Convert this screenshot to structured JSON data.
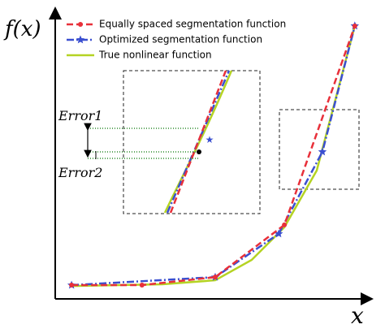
{
  "chart_data": {
    "type": "line",
    "x_label": "x",
    "y_label": "f(x)",
    "xlim": [
      0,
      100
    ],
    "ylim": [
      0,
      100
    ],
    "legend": "top-left",
    "annotations": [
      "Error1",
      "Error2"
    ],
    "series": [
      {
        "name": "Equally spaced segmentation function",
        "color": "#e8303a",
        "style": "dashed",
        "marker": "dot",
        "x": [
          5.2,
          27.6,
          50.9,
          72.9,
          95.3
        ],
        "values": [
          4.8,
          4.8,
          7.6,
          25.8,
          95.2
        ]
      },
      {
        "name": "Optimized segmentation function",
        "color": "#3a4fd0",
        "style": "dashdot",
        "marker": "star",
        "x": [
          5.2,
          50.9,
          71.1,
          85.0,
          95.3
        ],
        "values": [
          4.8,
          7.6,
          22.7,
          51.3,
          95.2
        ]
      },
      {
        "name": "True nonlinear function",
        "color": "#b5d323",
        "style": "solid",
        "marker": "none",
        "x": [
          5.2,
          34.1,
          50.9,
          62.5,
          72.9,
          83.2,
          95.3
        ],
        "values": [
          4.5,
          5.1,
          6.5,
          13.6,
          25.0,
          44.8,
          95.2
        ]
      }
    ]
  }
}
